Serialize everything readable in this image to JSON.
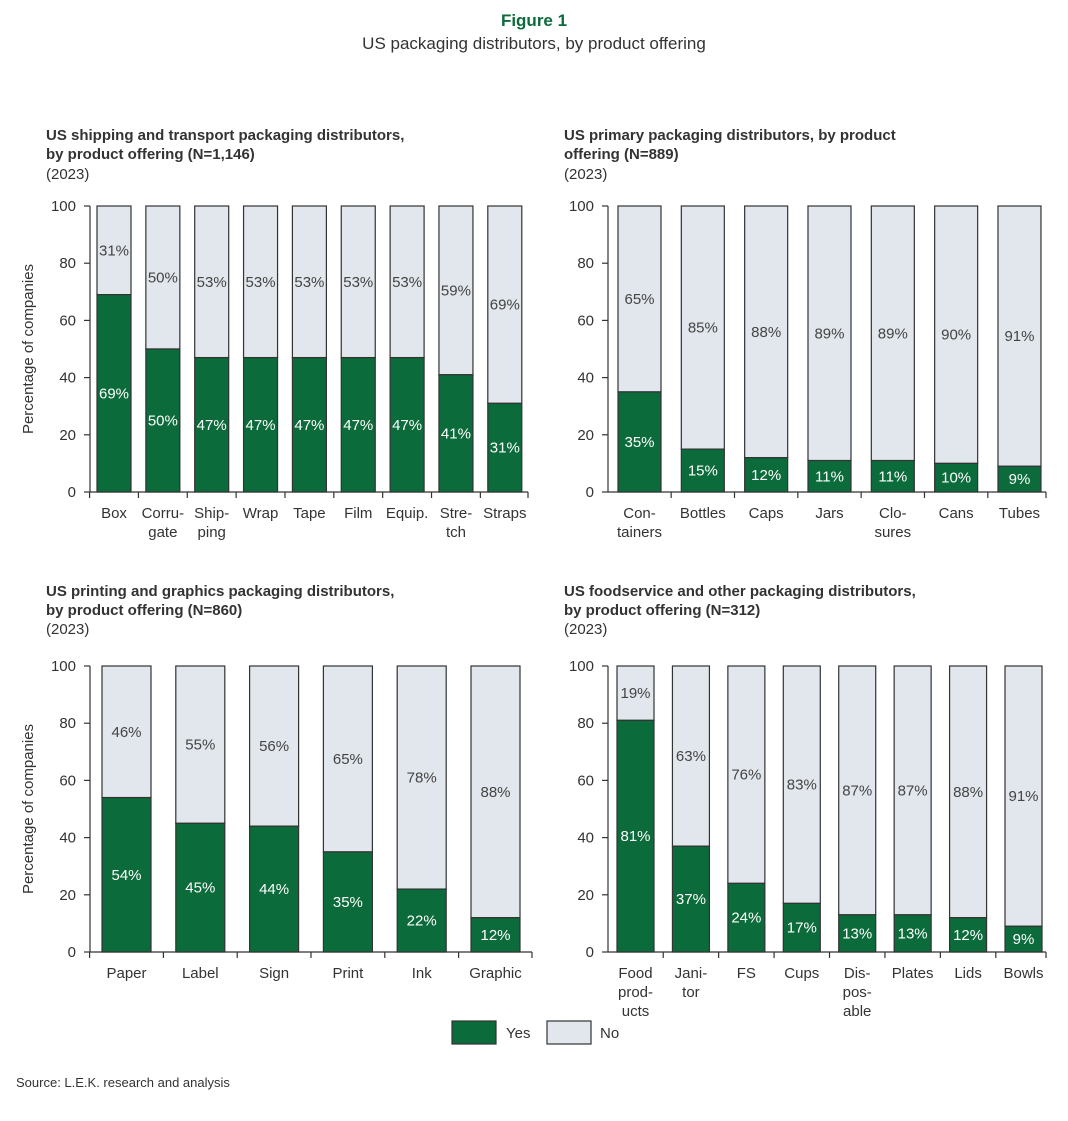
{
  "figure": {
    "title": "Figure 1",
    "subtitle": "US packaging distributors, by product offering"
  },
  "colors": {
    "yes": "#0b6b3a",
    "no": "#e1e7ec",
    "stroke": "#333333"
  },
  "legend": {
    "yes": "Yes",
    "no": "No"
  },
  "source": "Source: L.E.K. research and analysis",
  "chart_data": [
    {
      "type": "bar",
      "stacked": true,
      "title": [
        "US shipping and transport packaging distributors,",
        "by product offering (N=1,146)"
      ],
      "year": "(2023)",
      "ylabel": "Percentage of companies",
      "ylim": [
        0,
        100
      ],
      "yticks": [
        0,
        20,
        40,
        60,
        80,
        100
      ],
      "categories": [
        [
          "Box"
        ],
        [
          "Corru-",
          "gate"
        ],
        [
          "Ship-",
          "ping"
        ],
        [
          "Wrap"
        ],
        [
          "Tape"
        ],
        [
          "Film"
        ],
        [
          "Equip."
        ],
        [
          "Stre-",
          "tch"
        ],
        [
          "Straps"
        ]
      ],
      "series": [
        {
          "name": "Yes",
          "values": [
            69,
            50,
            47,
            47,
            47,
            47,
            47,
            41,
            31
          ]
        },
        {
          "name": "No",
          "values": [
            31,
            50,
            53,
            53,
            53,
            53,
            53,
            59,
            69
          ]
        }
      ]
    },
    {
      "type": "bar",
      "stacked": true,
      "title": [
        "US primary packaging distributors, by product",
        "offering (N=889)"
      ],
      "year": "(2023)",
      "ylabel": "",
      "ylim": [
        0,
        100
      ],
      "yticks": [
        0,
        20,
        40,
        60,
        80,
        100
      ],
      "categories": [
        [
          "Con-",
          "tainers"
        ],
        [
          "Bottles"
        ],
        [
          "Caps"
        ],
        [
          "Jars"
        ],
        [
          "Clo-",
          "sures"
        ],
        [
          "Cans"
        ],
        [
          "Tubes"
        ]
      ],
      "series": [
        {
          "name": "Yes",
          "values": [
            35,
            15,
            12,
            11,
            11,
            10,
            9
          ]
        },
        {
          "name": "No",
          "values": [
            65,
            85,
            88,
            89,
            89,
            90,
            91
          ]
        }
      ]
    },
    {
      "type": "bar",
      "stacked": true,
      "title": [
        "US printing and graphics packaging distributors,",
        "by product offering (N=860)"
      ],
      "year": "(2023)",
      "ylabel": "Percentage of companies",
      "ylim": [
        0,
        100
      ],
      "yticks": [
        0,
        20,
        40,
        60,
        80,
        100
      ],
      "categories": [
        [
          "Paper"
        ],
        [
          "Label"
        ],
        [
          "Sign"
        ],
        [
          "Print"
        ],
        [
          "Ink"
        ],
        [
          "Graphic"
        ]
      ],
      "series": [
        {
          "name": "Yes",
          "values": [
            54,
            45,
            44,
            35,
            22,
            12
          ]
        },
        {
          "name": "No",
          "values": [
            46,
            55,
            56,
            65,
            78,
            88
          ]
        }
      ]
    },
    {
      "type": "bar",
      "stacked": true,
      "title": [
        "US foodservice and other packaging distributors,",
        "by product offering (N=312)"
      ],
      "year": "(2023)",
      "ylabel": "",
      "ylim": [
        0,
        100
      ],
      "yticks": [
        0,
        20,
        40,
        60,
        80,
        100
      ],
      "categories": [
        [
          "Food",
          "prod-",
          "ucts"
        ],
        [
          "Jani-",
          "tor"
        ],
        [
          "FS"
        ],
        [
          "Cups"
        ],
        [
          "Dis-",
          "pos-",
          "able"
        ],
        [
          "Plates"
        ],
        [
          "Lids"
        ],
        [
          "Bowls"
        ]
      ],
      "series": [
        {
          "name": "Yes",
          "values": [
            81,
            37,
            24,
            17,
            13,
            13,
            12,
            9
          ]
        },
        {
          "name": "No",
          "values": [
            19,
            63,
            76,
            83,
            87,
            87,
            88,
            91
          ]
        }
      ]
    }
  ]
}
